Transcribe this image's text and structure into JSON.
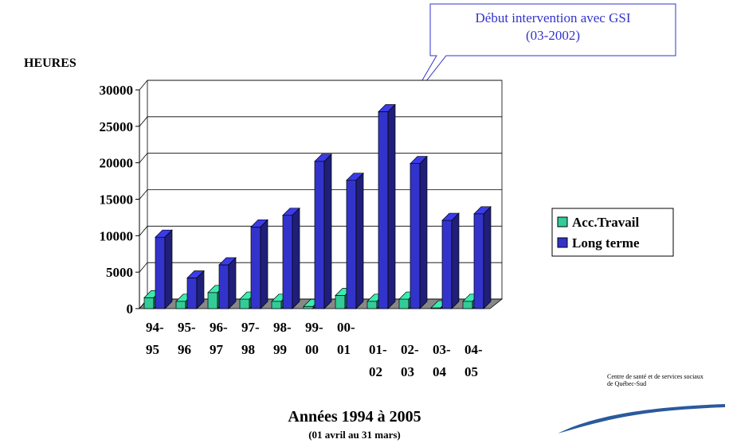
{
  "chart_data": {
    "type": "bar3d",
    "y_label": "HEURES",
    "title": "Années 1994 à 2005",
    "subtitle": "(01 avril au 31 mars)",
    "annotation": "Début intervention avec GSI\n(03-2002)",
    "logo_text": "Centre de santé et de services sociaux\nde Québec-Sud",
    "categories": [
      "94-\n95",
      "95-\n96",
      "96-\n97",
      "97-\n98",
      "98-\n99",
      "99-\n00",
      "00-\n01",
      "01-\n02",
      "02-\n03",
      "03-\n04",
      "04-\n05"
    ],
    "series": [
      {
        "name": "Acc.Travail",
        "color": "#33cc99",
        "values": [
          1500,
          1000,
          2200,
          1300,
          1000,
          300,
          1800,
          1000,
          1300,
          100,
          1000
        ]
      },
      {
        "name": "Long terme",
        "color": "#3333cc",
        "values": [
          9800,
          4200,
          6000,
          11200,
          12800,
          20200,
          17600,
          27000,
          19900,
          12100,
          13000
        ]
      }
    ],
    "ylim": [
      0,
      30000
    ],
    "yticks": [
      0,
      5000,
      10000,
      15000,
      20000,
      25000,
      30000
    ],
    "grid": true,
    "legend": "right"
  }
}
